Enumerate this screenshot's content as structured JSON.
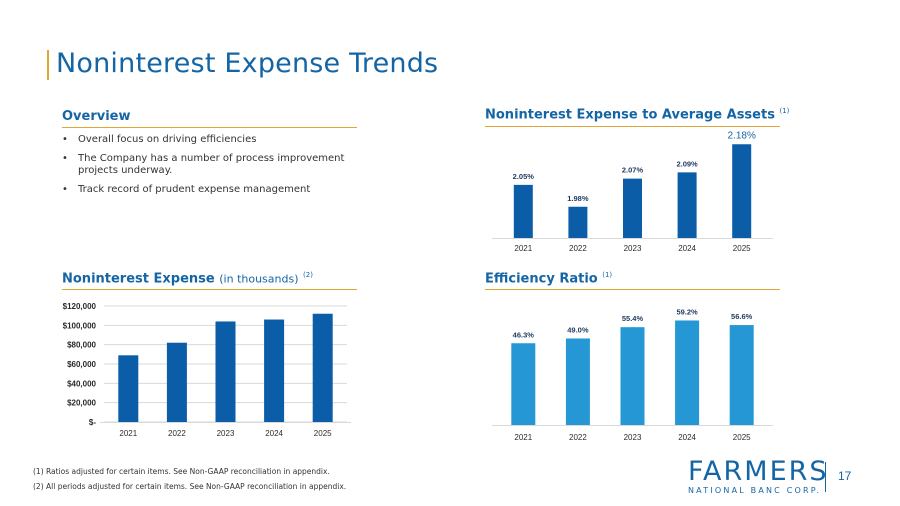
{
  "slide": {
    "title": "Noninterest Expense Trends",
    "page_number": "17",
    "overview": {
      "heading": "Overview",
      "bullets": [
        "Overall focus on driving efficiencies",
        "The Company has a number of process improvement projects underway.",
        "Track record of prudent expense management"
      ]
    },
    "footnotes": [
      "(1) Ratios adjusted for certain items. See Non-GAAP reconciliation in appendix.",
      "(2) All periods adjusted for certain items. See Non-GAAP reconciliation in appendix."
    ],
    "logo": {
      "name": "FARMERS",
      "tagline": "NATIONAL BANC CORP."
    },
    "colors": {
      "accent": "#e3a43a",
      "navy": "#1565a5",
      "bar_dark": "#0b5da8",
      "bar_light": "#2497d4"
    }
  },
  "chart_data": [
    {
      "type": "bar",
      "title": "Noninterest Expense to Average Assets",
      "title_note": "(1)",
      "categories": [
        "2021",
        "2022",
        "2023",
        "2024",
        "2025"
      ],
      "values": [
        2.05,
        1.98,
        2.07,
        2.09,
        2.18
      ],
      "labels": [
        "2.05%",
        "1.98%",
        "2.07%",
        "2.09%",
        "2.18%"
      ],
      "ylim": [
        1.88,
        2.2
      ]
    },
    {
      "type": "bar",
      "title": "Noninterest Expense",
      "title_sub": "(in thousands)",
      "title_note": "(2)",
      "categories": [
        "2021",
        "2022",
        "2023",
        "2024",
        "2025"
      ],
      "values": [
        69000,
        82000,
        104000,
        106000,
        112000
      ],
      "ylim": [
        0,
        120000
      ],
      "yticks": [
        0,
        20000,
        40000,
        60000,
        80000,
        100000,
        120000
      ],
      "ytick_labels": [
        "$-",
        "$20,000",
        "$40,000",
        "$60,000",
        "$80,000",
        "$100,000",
        "$120,000"
      ],
      "grid": true
    },
    {
      "type": "bar",
      "title": "Efficiency Ratio",
      "title_note": "(1)",
      "categories": [
        "2021",
        "2022",
        "2023",
        "2024",
        "2025"
      ],
      "values": [
        46.3,
        49.0,
        55.4,
        59.2,
        56.6
      ],
      "labels": [
        "46.3%",
        "49.0%",
        "55.4%",
        "59.2%",
        "56.6%"
      ],
      "ylim": [
        0,
        62.3
      ]
    }
  ]
}
